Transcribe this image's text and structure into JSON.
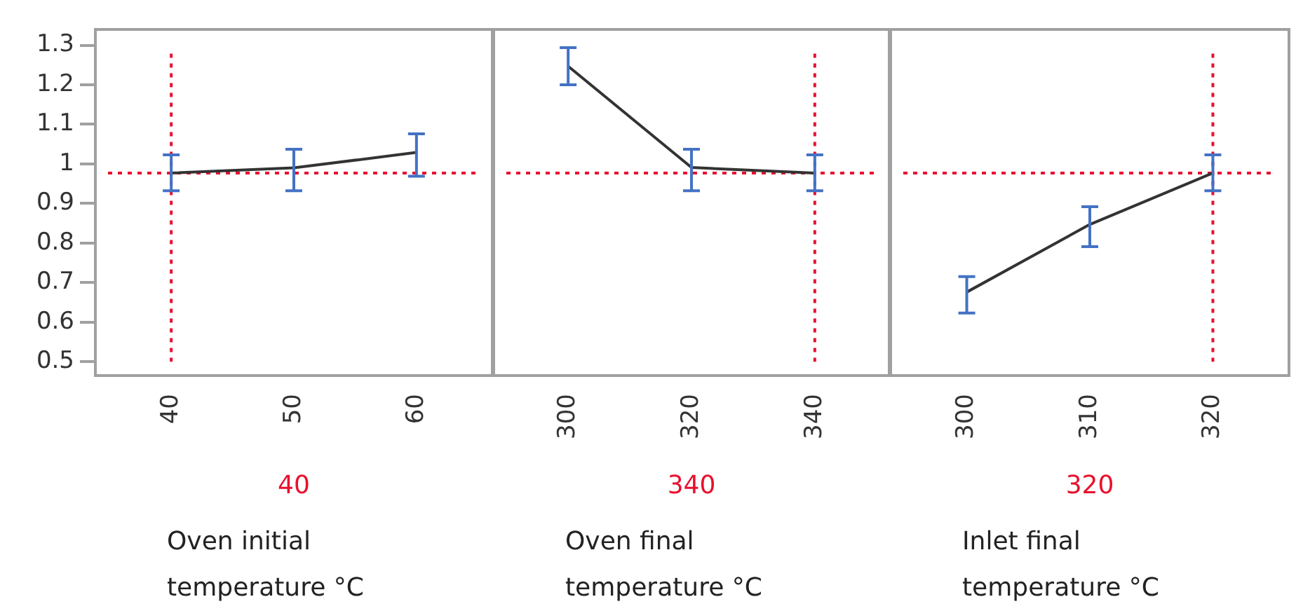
{
  "chart_data": [
    {
      "type": "line",
      "x": [
        40,
        50,
        60
      ],
      "xlabel": "Oven initial temperature °C",
      "xlim": [
        33.7,
        66.3
      ],
      "xticks": [
        40,
        50,
        60
      ],
      "ylim": [
        0.465,
        1.34
      ],
      "yticks": [
        0.5,
        0.6,
        0.7,
        0.8,
        0.9,
        1,
        1.1,
        1.2,
        1.3
      ],
      "series": [
        {
          "color": "#333333",
          "values": [
            0.977,
            0.99,
            1.029
          ],
          "errors": [
            [
              0.932,
              1.023
            ],
            [
              0.932,
              1.037
            ],
            [
              0.969,
              1.076
            ]
          ]
        }
      ],
      "ref_lines": [
        {
          "axis": "y",
          "value": 0.977,
          "color": "#e8112d",
          "line_style": "dotted"
        },
        {
          "axis": "x",
          "value": 40,
          "label": "40",
          "color": "#e8112d",
          "line_style": "dotted"
        }
      ],
      "grid": false
    },
    {
      "type": "line",
      "x": [
        300,
        320,
        340
      ],
      "xlabel": "Oven final temperature °C",
      "xlim": [
        287.7,
        352.3
      ],
      "xticks": [
        300,
        320,
        340
      ],
      "ylim": [
        0.465,
        1.34
      ],
      "tick_labels": "x",
      "series": [
        {
          "color": "#333333",
          "values": [
            1.247,
            0.991,
            0.977
          ],
          "errors": [
            [
              1.2,
              1.294
            ],
            [
              0.932,
              1.037
            ],
            [
              0.932,
              1.023
            ]
          ]
        }
      ],
      "ref_lines": [
        {
          "axis": "y",
          "value": 0.977,
          "color": "#e8112d",
          "line_style": "dotted"
        },
        {
          "axis": "x",
          "value": 340,
          "label": "340",
          "color": "#e8112d",
          "line_style": "dotted"
        }
      ],
      "grid": false
    },
    {
      "type": "line",
      "x": [
        300,
        310,
        320
      ],
      "xlabel": "Inlet final temperature °C",
      "xlim": [
        293.7,
        326.3
      ],
      "xticks": [
        300,
        310,
        320
      ],
      "ylim": [
        0.465,
        1.34
      ],
      "tick_labels": "x",
      "series": [
        {
          "color": "#333333",
          "values": [
            0.676,
            0.847,
            0.977
          ],
          "errors": [
            [
              0.623,
              0.715
            ],
            [
              0.791,
              0.892
            ],
            [
              0.932,
              1.023
            ]
          ]
        }
      ],
      "ref_lines": [
        {
          "axis": "y",
          "value": 0.977,
          "color": "#e8112d",
          "line_style": "dotted"
        },
        {
          "axis": "x",
          "value": 320,
          "label": "320",
          "color": "#e8112d",
          "line_style": "dotted"
        }
      ],
      "grid": false
    }
  ]
}
